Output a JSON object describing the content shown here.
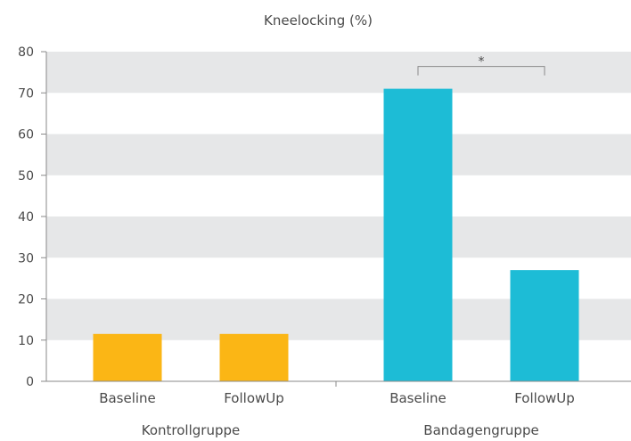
{
  "chart_data": {
    "type": "bar",
    "title": "Kneelocking (%)",
    "xlabel": "",
    "ylabel": "",
    "ylim": [
      0,
      80
    ],
    "yticks": [
      0,
      10,
      20,
      30,
      40,
      50,
      60,
      70,
      80
    ],
    "grid": "alternating horizontal bands",
    "groups": [
      {
        "name": "Kontrollgruppe",
        "color": "#fbb615",
        "categories": [
          "Baseline",
          "FollowUp"
        ],
        "values": [
          11.5,
          11.5
        ]
      },
      {
        "name": "Bandagengruppe",
        "color": "#1dbcd6",
        "categories": [
          "Baseline",
          "FollowUp"
        ],
        "values": [
          71,
          27
        ]
      }
    ],
    "annotations": [
      {
        "text": "*",
        "type": "significance-bracket",
        "group": "Bandagengruppe",
        "between": [
          "Baseline",
          "FollowUp"
        ]
      }
    ]
  }
}
